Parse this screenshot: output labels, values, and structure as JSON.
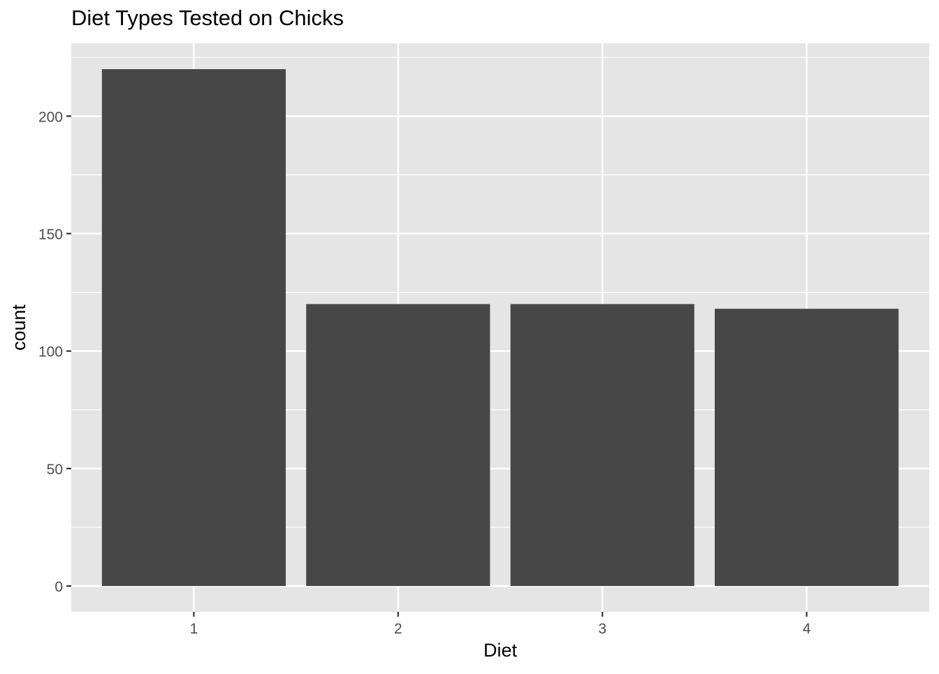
{
  "chart_data": {
    "type": "bar",
    "title": "Diet Types Tested on Chicks",
    "xlabel": "Diet",
    "ylabel": "count",
    "categories": [
      "1",
      "2",
      "3",
      "4"
    ],
    "values": [
      220,
      120,
      120,
      118
    ],
    "ylim": [
      -11,
      231
    ],
    "yticks": [
      0,
      50,
      100,
      150,
      200
    ],
    "grid": true,
    "legend": "none",
    "colors": {
      "bar": "#474747",
      "panel": "#e5e5e5",
      "grid": "#ffffff",
      "axis_text": "#4d4d4d",
      "title": "#000000"
    }
  }
}
